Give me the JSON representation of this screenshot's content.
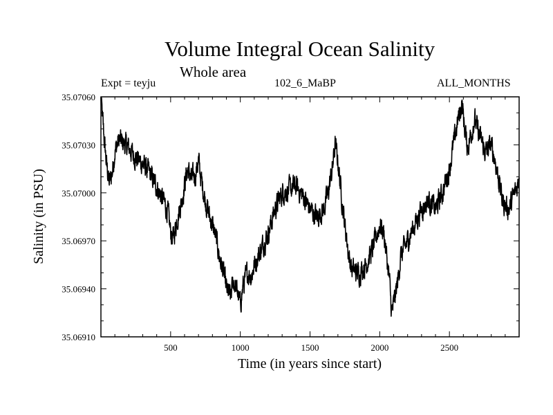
{
  "chart_data": {
    "type": "line",
    "title": "Volume Integral Ocean Salinity",
    "subtitle": "Whole area",
    "experiment_label": "Expt = teyju",
    "run_label": "102_6_MaBP",
    "period_label": "ALL_MONTHS",
    "xlabel": "Time (in years since start)",
    "ylabel": "Salinity (in PSU)",
    "xlim": [
      0,
      3000
    ],
    "ylim": [
      35.0691,
      35.0706
    ],
    "x_ticks": [
      500,
      1000,
      1500,
      2000,
      2500
    ],
    "y_ticks": [
      "35.06910",
      "35.06940",
      "35.06970",
      "35.07000",
      "35.07030",
      "35.07060"
    ],
    "grid": false,
    "series": [
      {
        "name": "Salinity",
        "color": "#000000",
        "x": [
          0,
          10,
          25,
          40,
          60,
          80,
          100,
          130,
          160,
          200,
          250,
          300,
          350,
          400,
          450,
          480,
          500,
          520,
          550,
          580,
          600,
          620,
          650,
          680,
          700,
          720,
          750,
          780,
          800,
          830,
          850,
          880,
          900,
          930,
          950,
          980,
          1000,
          1020,
          1050,
          1080,
          1100,
          1150,
          1200,
          1250,
          1300,
          1350,
          1400,
          1450,
          1500,
          1550,
          1600,
          1630,
          1660,
          1680,
          1700,
          1730,
          1750,
          1780,
          1800,
          1850,
          1900,
          1950,
          2000,
          2030,
          2050,
          2070,
          2085,
          2100,
          2130,
          2150,
          2200,
          2250,
          2300,
          2350,
          2400,
          2450,
          2500,
          2530,
          2560,
          2590,
          2610,
          2630,
          2650,
          2680,
          2700,
          2730,
          2760,
          2800,
          2830,
          2850,
          2880,
          2900,
          2930,
          2960,
          2990,
          3000
        ],
        "y": [
          35.07058,
          35.07048,
          35.07032,
          35.07018,
          35.07006,
          35.07012,
          35.07026,
          35.07033,
          35.07031,
          35.07028,
          35.07022,
          35.07018,
          35.07012,
          35.07004,
          35.06995,
          35.06988,
          35.06975,
          35.06972,
          35.06985,
          35.06995,
          35.07005,
          35.07015,
          35.07008,
          35.07012,
          35.0702,
          35.07008,
          35.06995,
          35.06985,
          35.0698,
          35.0697,
          35.0696,
          35.0695,
          35.0694,
          35.06935,
          35.06945,
          35.06938,
          35.0693,
          35.06942,
          35.0695,
          35.06948,
          35.06955,
          35.06965,
          35.06975,
          35.0699,
          35.07,
          35.07002,
          35.07004,
          35.06998,
          35.0699,
          35.06985,
          35.0699,
          35.07,
          35.07015,
          35.0703,
          35.0702,
          35.06995,
          35.0698,
          35.0696,
          35.06952,
          35.0695,
          35.06955,
          35.06965,
          35.0698,
          35.06975,
          35.0696,
          35.06945,
          35.06925,
          35.0693,
          35.06945,
          35.0696,
          35.0697,
          35.0698,
          35.0699,
          35.06995,
          35.0699,
          35.07,
          35.07015,
          35.0703,
          35.07045,
          35.07056,
          35.0704,
          35.07028,
          35.07035,
          35.07046,
          35.0704,
          35.07032,
          35.07025,
          35.0703,
          35.0702,
          35.0701,
          35.06995,
          35.06992,
          35.0699,
          35.06998,
          35.07005,
          35.07012
        ]
      }
    ]
  }
}
